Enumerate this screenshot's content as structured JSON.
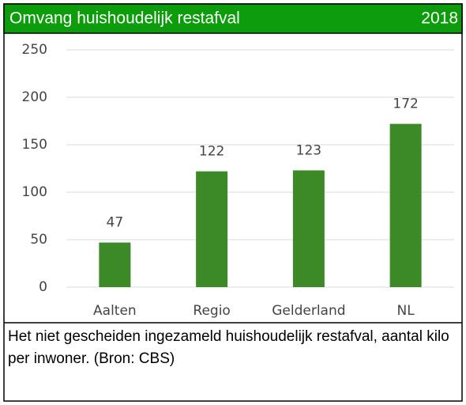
{
  "chart_data": {
    "type": "bar",
    "title": "Omvang huishoudelijk restafval",
    "subtitle": "2018",
    "categories": [
      "Aalten",
      "Regio",
      "Gelderland",
      "NL"
    ],
    "values": [
      47,
      122,
      123,
      172
    ],
    "color": "#3b8a27",
    "ylim": [
      0,
      250
    ],
    "yticks": [
      0,
      50,
      100,
      150,
      200,
      250
    ],
    "grid": true,
    "caption": "Het niet gescheiden ingezameld huishoudelijk restafval, aantal kilo per inwoner. (Bron: CBS)"
  }
}
